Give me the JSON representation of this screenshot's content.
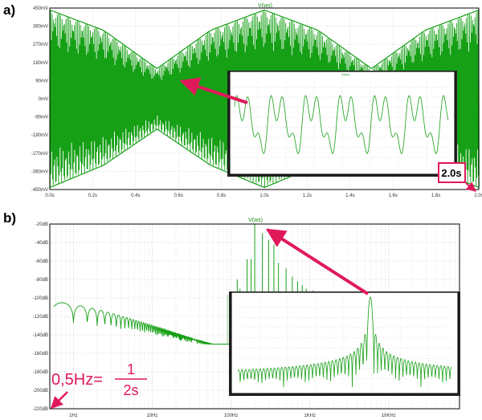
{
  "colors": {
    "trace": "#16a016",
    "grid": "#bdbdbd",
    "accent": "#e0195a",
    "frame": "#000000"
  },
  "chart_data": [
    {
      "label": "a)",
      "type": "line",
      "title": "V(ws)",
      "x_unit": "s",
      "xlim": [
        0,
        2.0
      ],
      "ylim": [
        -450,
        450
      ],
      "y_unit": "mV",
      "x_ticks": [
        "0.0s",
        "0.2s",
        "0.4s",
        "0.6s",
        "0.8s",
        "1.0s",
        "1.2s",
        "1.4s",
        "1.6s",
        "1.8s",
        "2.0s"
      ],
      "y_ticks": [
        "450mV",
        "360mV",
        "270mV",
        "180mV",
        "90mV",
        "0mV",
        "-90mV",
        "-180mV",
        "-270mV",
        "-360mV",
        "-450mV"
      ],
      "envelope": {
        "description": "dense oscillation whose amplitude beats with period 1.0 s",
        "x": [
          0.0,
          0.25,
          0.5,
          0.75,
          1.0,
          1.25,
          1.5,
          1.75,
          2.0
        ],
        "upper_mV": [
          440,
          340,
          150,
          340,
          440,
          340,
          150,
          340,
          440
        ],
        "lower_mV": [
          -440,
          -330,
          -150,
          -330,
          -440,
          -330,
          -150,
          -330,
          -440
        ]
      },
      "callout": "2.0s",
      "inset": {
        "type": "line",
        "title": "V(ws)",
        "description": "zoomed detail of the waveform showing repeating multi-peak pattern"
      }
    },
    {
      "label": "b)",
      "type": "line",
      "title": "V(ws)",
      "x_scale": "log",
      "x_ticks": [
        "1Hz",
        "10Hz",
        "100Hz",
        "1KHz",
        "10KHz"
      ],
      "y_unit": "dB",
      "ylim": [
        -220,
        -20
      ],
      "y_ticks": [
        "-20dB",
        "-40dB",
        "-60dB",
        "-80dB",
        "-100dB",
        "-120dB",
        "-140dB",
        "-160dB",
        "-180dB",
        "-200dB",
        "-220dB"
      ],
      "spectrum": {
        "description": "sinc-like lobes from ~1 Hz with peak near -98 dB; dense comb from ~90 Hz; tallest line near 200 Hz at -20 dB",
        "peak_freq_Hz": 200,
        "peak_dB": -20
      },
      "annotation": {
        "prefix": "0,5Hz=",
        "numerator": "1",
        "denominator": "2s"
      },
      "inset": {
        "type": "line",
        "description": "zoomed spectrum with main peak and symmetric side lobes"
      }
    }
  ]
}
